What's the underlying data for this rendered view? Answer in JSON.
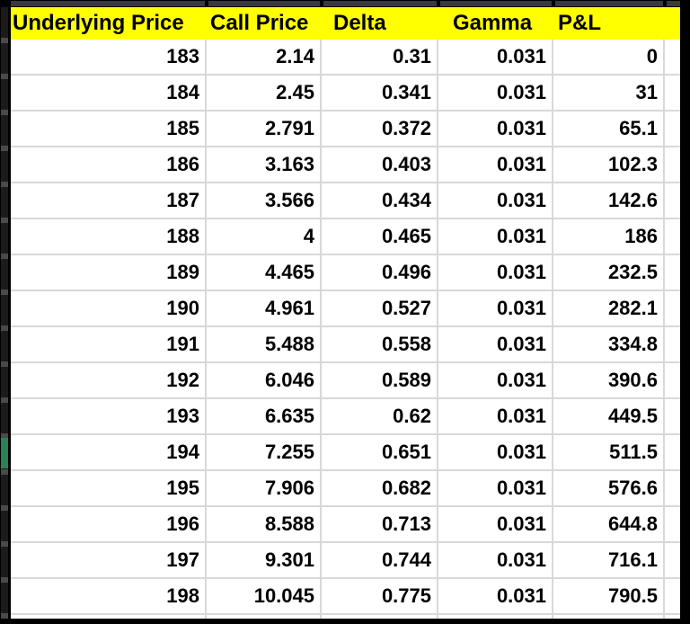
{
  "table": {
    "columns": [
      "Underlying Price",
      "Call Price",
      "Delta",
      "Gamma",
      "P&L"
    ],
    "rows": [
      [
        "183",
        "2.14",
        "0.31",
        "0.031",
        "0"
      ],
      [
        "184",
        "2.45",
        "0.341",
        "0.031",
        "31"
      ],
      [
        "185",
        "2.791",
        "0.372",
        "0.031",
        "65.1"
      ],
      [
        "186",
        "3.163",
        "0.403",
        "0.031",
        "102.3"
      ],
      [
        "187",
        "3.566",
        "0.434",
        "0.031",
        "142.6"
      ],
      [
        "188",
        "4",
        "0.465",
        "0.031",
        "186"
      ],
      [
        "189",
        "4.465",
        "0.496",
        "0.031",
        "232.5"
      ],
      [
        "190",
        "4.961",
        "0.527",
        "0.031",
        "282.1"
      ],
      [
        "191",
        "5.488",
        "0.558",
        "0.031",
        "334.8"
      ],
      [
        "192",
        "6.046",
        "0.589",
        "0.031",
        "390.6"
      ],
      [
        "193",
        "6.635",
        "0.62",
        "0.031",
        "449.5"
      ],
      [
        "194",
        "7.255",
        "0.651",
        "0.031",
        "511.5"
      ],
      [
        "195",
        "7.906",
        "0.682",
        "0.031",
        "576.6"
      ],
      [
        "196",
        "8.588",
        "0.713",
        "0.031",
        "644.8"
      ],
      [
        "197",
        "9.301",
        "0.744",
        "0.031",
        "716.1"
      ],
      [
        "198",
        "10.045",
        "0.775",
        "0.031",
        "790.5"
      ]
    ]
  },
  "selection": {
    "indicated_row": "194"
  },
  "colors": {
    "header_bg": "#FFFF00",
    "header_text": "#000000",
    "cell_text": "#000000",
    "cell_bg": "#FFFFFF",
    "gridline": "#D8D8D8",
    "frame_border": "#000000",
    "selection_indicator": "#2B8259"
  }
}
